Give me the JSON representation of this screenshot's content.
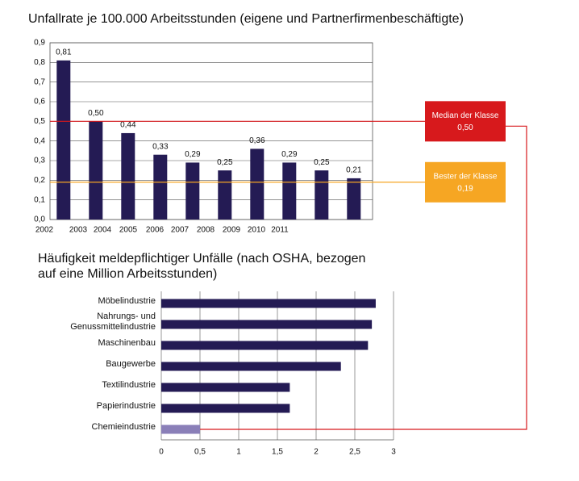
{
  "chart_data": [
    {
      "type": "bar",
      "title": "Unfallrate je 100.000 Arbeitsstunden (eigene und Partnerfirmenbeschäftigte)",
      "categories": [
        "2002",
        "2003",
        "2004",
        "2005",
        "2006",
        "2007",
        "2008",
        "2009",
        "2010",
        "2011"
      ],
      "values": [
        0.81,
        0.5,
        0.44,
        0.33,
        0.29,
        0.25,
        0.36,
        0.29,
        0.25,
        0.21
      ],
      "value_labels": [
        "0,81",
        "0,50",
        "0,44",
        "0,33",
        "0,29",
        "0,25",
        "0,36",
        "0,29",
        "0,25",
        "0,21"
      ],
      "color": "#241b54",
      "ylim": [
        0,
        0.9
      ],
      "yticks": [
        {
          "value": 0,
          "label": "0,0"
        },
        {
          "value": 0.1,
          "label": "0,1"
        },
        {
          "value": 0.2,
          "label": "0,2"
        },
        {
          "value": 0.3,
          "label": "0,3"
        },
        {
          "value": 0.4,
          "label": "0,4"
        },
        {
          "value": 0.5,
          "label": "0,5"
        },
        {
          "value": 0.6,
          "label": "0,6"
        },
        {
          "value": 0.7,
          "label": "0,7"
        },
        {
          "value": 0.8,
          "label": "0,8"
        },
        {
          "value": 0.9,
          "label": "0,9"
        }
      ],
      "grid": true,
      "annotations": [
        {
          "label": "Median der Klasse",
          "value": 0.5,
          "value_label": "0,50",
          "color": "#d7191c"
        },
        {
          "label": "Bester der Klasse",
          "value": 0.19,
          "value_label": "0,19",
          "color": "#f6a623"
        }
      ]
    },
    {
      "type": "barh",
      "title": "Häufigkeit meldepflichtiger Unfälle (nach OSHA, bezogen auf eine Million Arbeitsstunden)",
      "categories": [
        "Möbelindustrie",
        "Nahrungs- und Genussmittelindustrie",
        "Maschinenbau",
        "Baugewerbe",
        "Textilindustrie",
        "Papierindustrie",
        "Chemieindustrie"
      ],
      "values": [
        2.77,
        2.72,
        2.67,
        2.32,
        1.66,
        1.66,
        0.5
      ],
      "colors": [
        "#241b54",
        "#241b54",
        "#241b54",
        "#241b54",
        "#241b54",
        "#241b54",
        "#8a7fb8"
      ],
      "xlim": [
        0,
        3
      ],
      "xticks": [
        0,
        {
          "value": 0.5,
          "label": "0,5"
        },
        1,
        {
          "value": 1.5,
          "label": "1,5"
        },
        2,
        {
          "value": 2.5,
          "label": "2,5"
        },
        3
      ],
      "grid": true
    }
  ]
}
